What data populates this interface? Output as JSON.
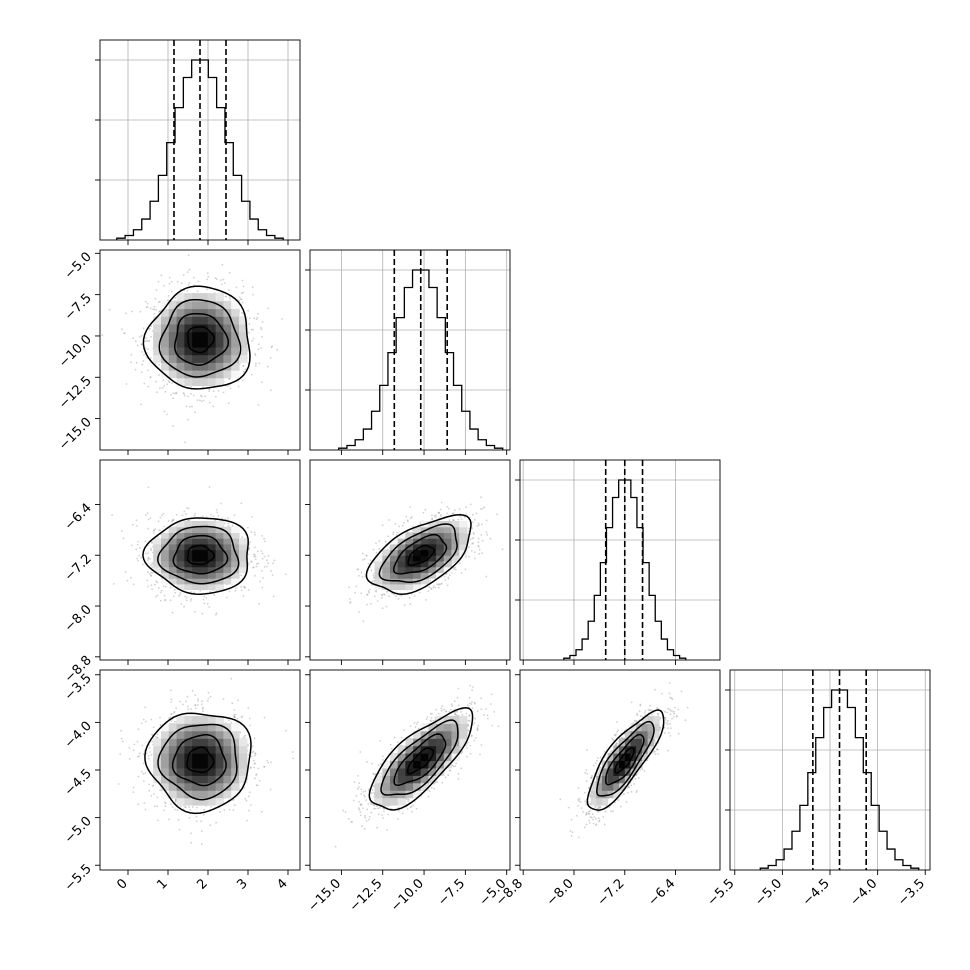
{
  "chart_data": {
    "type": "corner",
    "description_of_layout": "lower-triangular grid of 4x4 panels; diagonal = 1D histograms with dashed quantile lines, off-diagonal = 2D density with contours",
    "parameters": [
      {
        "axis_range": [
          -0.7,
          4.3
        ],
        "x_ticks": [
          "0",
          "1",
          "2",
          "3",
          "4"
        ],
        "x_tick_values": [
          0,
          1,
          2,
          3,
          4
        ],
        "y_ticks": [],
        "y_tick_values": [],
        "mean": 1.8,
        "sigma": 0.65,
        "quantiles": [
          1.15,
          1.8,
          2.45
        ]
      },
      {
        "axis_range": [
          -16.9,
          -4.8
        ],
        "x_ticks": [
          "−15.0",
          "−12.5",
          "−10.0",
          "−7.5",
          "−5.0"
        ],
        "x_tick_values": [
          -15.0,
          -12.5,
          -10.0,
          -7.5,
          -5.0
        ],
        "y_ticks": [
          "−5.0",
          "−7.5",
          "−10.0",
          "−12.5",
          "−15.0"
        ],
        "y_tick_values": [
          -5.0,
          -7.5,
          -10.0,
          -12.5,
          -15.0
        ],
        "mean": -10.2,
        "sigma": 1.55,
        "quantiles": [
          -11.8,
          -10.2,
          -8.6
        ]
      },
      {
        "axis_range": [
          -8.85,
          -5.7
        ],
        "x_ticks": [
          "−8.8",
          "−8.0",
          "−7.2",
          "−6.4"
        ],
        "x_tick_values": [
          -8.8,
          -8.0,
          -7.2,
          -6.4
        ],
        "y_ticks": [
          "−6.4",
          "−7.2",
          "−8.0",
          "−8.8"
        ],
        "y_tick_values": [
          -6.4,
          -7.2,
          -8.0,
          -8.8
        ],
        "mean": -7.2,
        "sigma": 0.3,
        "quantiles": [
          -7.5,
          -7.2,
          -6.92
        ]
      },
      {
        "axis_range": [
          -5.55,
          -3.45
        ],
        "x_ticks": [
          "−5.5",
          "−5.0",
          "−4.5",
          "−4.0",
          "−3.5"
        ],
        "x_tick_values": [
          -5.5,
          -5.0,
          -4.5,
          -4.0,
          -3.5
        ],
        "y_ticks": [
          "−3.5",
          "−4.0",
          "−4.5",
          "−5.0",
          "−5.5"
        ],
        "y_tick_values": [
          -3.5,
          -4.0,
          -4.5,
          -5.0,
          -5.5
        ],
        "mean": -4.4,
        "sigma": 0.26,
        "quantiles": [
          -4.68,
          -4.4,
          -4.12
        ]
      }
    ],
    "correlations": {
      "1-0": 0.0,
      "2-0": 0.0,
      "2-1": 0.55,
      "3-0": 0.0,
      "3-1": 0.75,
      "3-2": 0.82
    },
    "histogram_bins": 20,
    "contour_levels_sigma": [
      0.5,
      1.0,
      1.5,
      2.0
    ],
    "grid": true,
    "colors": {
      "line": "#000000",
      "points": "#9a9a9a",
      "grid": "#b0b0b0",
      "density_dark": "#000000",
      "density_light": "#ffffff"
    }
  }
}
